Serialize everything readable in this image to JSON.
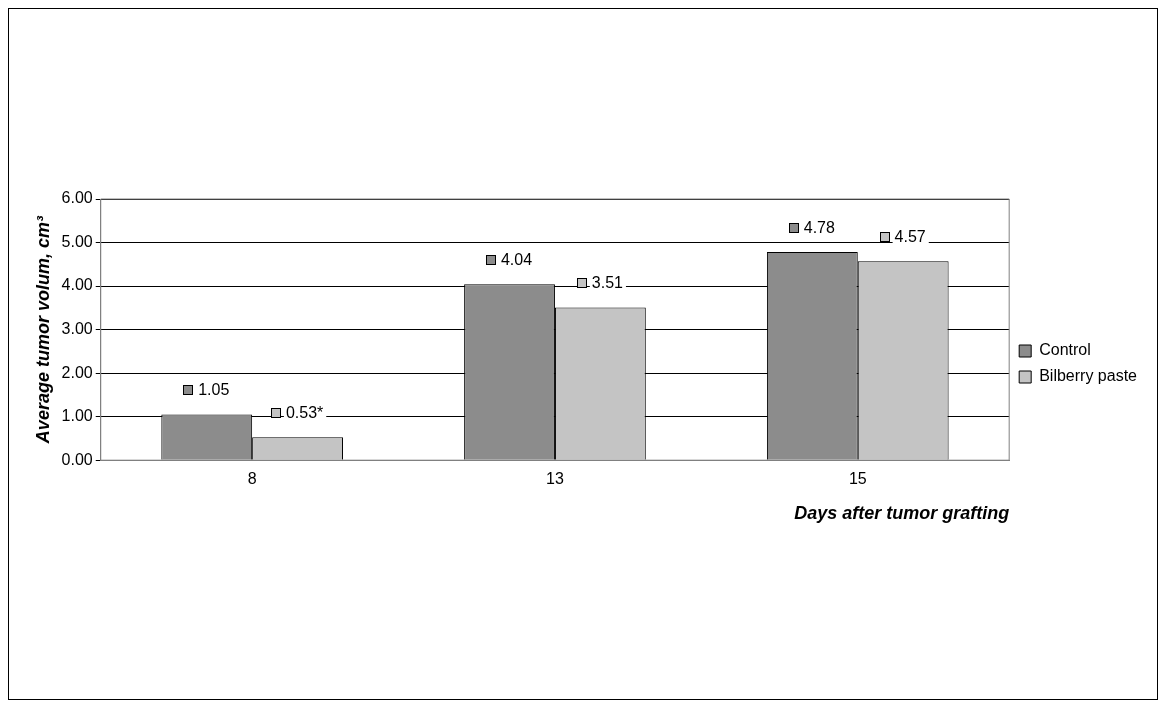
{
  "chart_data": {
    "type": "bar",
    "xlabel": "Days after tumor grafting",
    "ylabel": "Average tumor volum, cm³",
    "categories": [
      "8",
      "13",
      "15"
    ],
    "series": [
      {
        "name": "Control",
        "color": "#8c8c8c",
        "values": [
          1.05,
          4.04,
          4.78
        ],
        "value_labels": [
          "1.05",
          "4.04",
          "4.78"
        ]
      },
      {
        "name": "Bilberry paste",
        "color": "#c4c4c4",
        "values": [
          0.53,
          3.51,
          4.57
        ],
        "value_labels": [
          "0.53*",
          "3.51",
          "4.57"
        ]
      }
    ],
    "ylim": [
      0,
      6
    ],
    "yticks": [
      {
        "value": 0,
        "label": "0.00"
      },
      {
        "value": 1,
        "label": "1.00"
      },
      {
        "value": 2,
        "label": "2.00"
      },
      {
        "value": 3,
        "label": "3.00"
      },
      {
        "value": 4,
        "label": "4.00"
      },
      {
        "value": 5,
        "label": "5.00"
      },
      {
        "value": 6,
        "label": "6.00"
      }
    ],
    "grid": "y",
    "legend": "right"
  }
}
